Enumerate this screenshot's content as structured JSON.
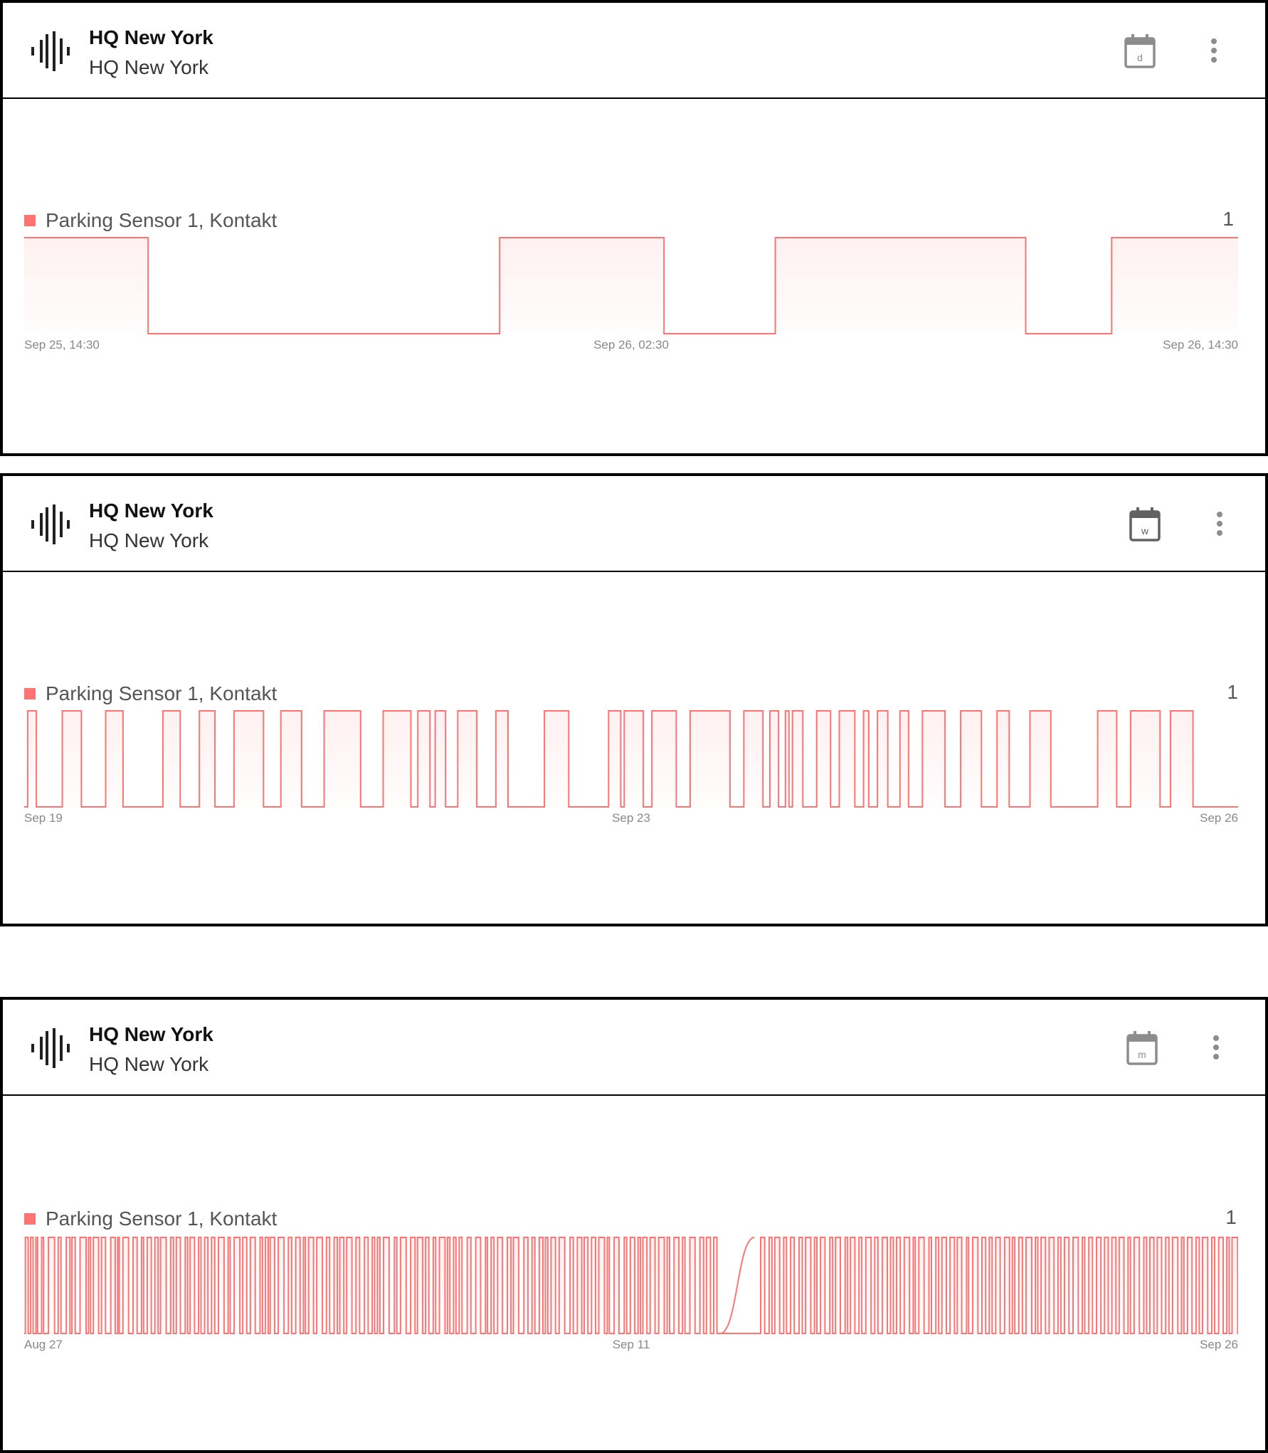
{
  "colors": {
    "series": "#ff7373",
    "series_fill": "#ffefef",
    "axis_text": "#888888",
    "icon": "#757575"
  },
  "cards": [
    {
      "title": "HQ New York",
      "subtitle": "HQ New York",
      "logo_icon": "audio-waveform-icon",
      "period_icon": "calendar-icon",
      "period_letter": "d",
      "menu_icon": "more-vert-icon",
      "legend_label": "Parking Sensor 1, Kontakt",
      "latest_value": "1"
    },
    {
      "title": "HQ New York",
      "subtitle": "HQ New York",
      "logo_icon": "audio-waveform-icon",
      "period_icon": "calendar-icon",
      "period_letter": "w",
      "menu_icon": "more-vert-icon",
      "legend_label": "Parking Sensor 1, Kontakt",
      "latest_value": "1"
    },
    {
      "title": "HQ New York",
      "subtitle": "HQ New York",
      "logo_icon": "audio-waveform-icon",
      "period_icon": "calendar-icon",
      "period_letter": "m",
      "menu_icon": "more-vert-icon",
      "legend_label": "Parking Sensor 1, Kontakt",
      "latest_value": "1"
    }
  ],
  "chart_data": [
    {
      "type": "line",
      "step": true,
      "series": [
        {
          "name": "Parking Sensor 1, Kontakt"
        }
      ],
      "x_ticks": [
        "Sep 25, 14:30",
        "Sep 26, 02:30",
        "Sep 26, 14:30"
      ],
      "x_range": [
        "Sep 25, 14:30",
        "Sep 26, 14:30"
      ],
      "y_range": [
        0,
        1
      ],
      "transitions_hours": [
        0,
        2.45,
        2.45,
        9.4,
        9.4,
        12.65,
        12.65,
        14.85,
        14.85,
        19.8,
        19.8,
        21.5,
        21.5,
        24
      ],
      "values": [
        1,
        1,
        0,
        0,
        1,
        1,
        0,
        0,
        1,
        1,
        0,
        0,
        1,
        1
      ]
    },
    {
      "type": "line",
      "step": true,
      "series": [
        {
          "name": "Parking Sensor 1, Kontakt"
        }
      ],
      "x_ticks": [
        "Sep 19",
        "Sep 23",
        "Sep 26"
      ],
      "x_range": [
        "Sep 19",
        "Sep 26"
      ],
      "y_range": [
        0,
        1
      ],
      "on_intervals_days": [
        [
          0.02,
          0.07
        ],
        [
          0.22,
          0.33
        ],
        [
          0.47,
          0.57
        ],
        [
          0.8,
          0.9
        ],
        [
          1.01,
          1.1
        ],
        [
          1.21,
          1.38
        ],
        [
          1.48,
          1.6
        ],
        [
          1.73,
          1.94
        ],
        [
          2.07,
          2.23
        ],
        [
          2.27,
          2.34
        ],
        [
          2.37,
          2.43
        ],
        [
          2.5,
          2.61
        ],
        [
          2.72,
          2.79
        ],
        [
          3.0,
          3.14
        ],
        [
          3.37,
          3.44
        ],
        [
          3.46,
          3.57
        ],
        [
          3.62,
          3.76
        ],
        [
          3.84,
          4.07
        ],
        [
          4.15,
          4.26
        ],
        [
          4.3,
          4.35
        ],
        [
          4.39,
          4.41
        ],
        [
          4.43,
          4.49
        ],
        [
          4.57,
          4.65
        ],
        [
          4.7,
          4.79
        ],
        [
          4.84,
          4.87
        ],
        [
          4.92,
          4.98
        ],
        [
          5.05,
          5.1
        ],
        [
          5.18,
          5.31
        ],
        [
          5.4,
          5.52
        ],
        [
          5.61,
          5.68
        ],
        [
          5.8,
          5.92
        ],
        [
          6.19,
          6.3
        ],
        [
          6.38,
          6.55
        ],
        [
          6.61,
          6.74
        ]
      ]
    },
    {
      "type": "line",
      "step": true,
      "series": [
        {
          "name": "Parking Sensor 1, Kontakt"
        }
      ],
      "x_ticks": [
        "Aug 27",
        "Sep 11",
        "Sep 26"
      ],
      "x_range": [
        "Aug 27",
        "Sep 26"
      ],
      "y_range": [
        0,
        1
      ],
      "gap_days": [
        17.2,
        18.05
      ],
      "on_intervals_days": [
        [
          0.03,
          0.1
        ],
        [
          0.16,
          0.22
        ],
        [
          0.29,
          0.33
        ],
        [
          0.43,
          0.48
        ],
        [
          0.6,
          0.75
        ],
        [
          0.84,
          0.91
        ],
        [
          1.04,
          1.13
        ],
        [
          1.18,
          1.26
        ],
        [
          1.38,
          1.53
        ],
        [
          1.59,
          1.64
        ],
        [
          1.71,
          1.84
        ],
        [
          1.91,
          2.01
        ],
        [
          2.14,
          2.25
        ],
        [
          2.31,
          2.35
        ],
        [
          2.44,
          2.58
        ],
        [
          2.69,
          2.79
        ],
        [
          2.9,
          2.95
        ],
        [
          3.04,
          3.14
        ],
        [
          3.23,
          3.31
        ],
        [
          3.37,
          3.51
        ],
        [
          3.62,
          3.69
        ],
        [
          3.76,
          3.86
        ],
        [
          3.98,
          4.04
        ],
        [
          4.1,
          4.21
        ],
        [
          4.31,
          4.37
        ],
        [
          4.46,
          4.54
        ],
        [
          4.63,
          4.71
        ],
        [
          4.8,
          4.94
        ],
        [
          5.04,
          5.09
        ],
        [
          5.19,
          5.33
        ],
        [
          5.4,
          5.5
        ],
        [
          5.59,
          5.71
        ],
        [
          5.83,
          5.89
        ],
        [
          5.96,
          6.03
        ],
        [
          6.08,
          6.19
        ],
        [
          6.28,
          6.42
        ],
        [
          6.53,
          6.61
        ],
        [
          6.71,
          6.82
        ],
        [
          6.9,
          6.95
        ],
        [
          7.03,
          7.15
        ],
        [
          7.23,
          7.37
        ],
        [
          7.47,
          7.55
        ],
        [
          7.66,
          7.74
        ],
        [
          7.8,
          7.9
        ],
        [
          7.97,
          8.1
        ],
        [
          8.2,
          8.29
        ],
        [
          8.41,
          8.5
        ],
        [
          8.6,
          8.66
        ],
        [
          8.73,
          8.79
        ],
        [
          8.88,
          9.02
        ],
        [
          9.15,
          9.21
        ],
        [
          9.3,
          9.44
        ],
        [
          9.55,
          9.66
        ],
        [
          9.72,
          9.85
        ],
        [
          9.92,
          10.0
        ],
        [
          10.11,
          10.17
        ],
        [
          10.26,
          10.4
        ],
        [
          10.46,
          10.52
        ],
        [
          10.61,
          10.67
        ],
        [
          10.75,
          10.82
        ],
        [
          10.95,
          11.04
        ],
        [
          11.16,
          11.28
        ],
        [
          11.4,
          11.45
        ],
        [
          11.54,
          11.61
        ],
        [
          11.7,
          11.82
        ],
        [
          11.94,
          12.03
        ],
        [
          12.09,
          12.22
        ],
        [
          12.35,
          12.45
        ],
        [
          12.55,
          12.62
        ],
        [
          12.73,
          12.82
        ],
        [
          12.88,
          12.94
        ],
        [
          13.02,
          13.13
        ],
        [
          13.22,
          13.36
        ],
        [
          13.49,
          13.57
        ],
        [
          13.67,
          13.78
        ],
        [
          13.84,
          13.93
        ],
        [
          14.02,
          14.12
        ],
        [
          14.2,
          14.34
        ],
        [
          14.41,
          14.46
        ],
        [
          14.58,
          14.7
        ],
        [
          14.83,
          14.89
        ],
        [
          14.98,
          15.09
        ],
        [
          15.17,
          15.23
        ],
        [
          15.29,
          15.39
        ],
        [
          15.47,
          15.59
        ],
        [
          15.68,
          15.82
        ],
        [
          15.89,
          15.95
        ],
        [
          16.06,
          16.18
        ],
        [
          16.27,
          16.33
        ],
        [
          16.45,
          16.58
        ],
        [
          16.7,
          16.79
        ],
        [
          16.86,
          16.96
        ],
        [
          17.04,
          17.12
        ],
        [
          18.2,
          18.3
        ],
        [
          18.41,
          18.48
        ],
        [
          18.55,
          18.67
        ],
        [
          18.77,
          18.84
        ],
        [
          18.94,
          19.03
        ],
        [
          19.15,
          19.23
        ],
        [
          19.31,
          19.44
        ],
        [
          19.53,
          19.59
        ],
        [
          19.68,
          19.79
        ],
        [
          19.91,
          19.98
        ],
        [
          20.05,
          20.17
        ],
        [
          20.29,
          20.35
        ],
        [
          20.42,
          20.53
        ],
        [
          20.63,
          20.7
        ],
        [
          20.8,
          20.93
        ],
        [
          21.02,
          21.1
        ],
        [
          21.21,
          21.33
        ],
        [
          21.41,
          21.48
        ],
        [
          21.56,
          21.65
        ],
        [
          21.75,
          21.88
        ],
        [
          21.97,
          22.02
        ],
        [
          22.11,
          22.24
        ],
        [
          22.36,
          22.42
        ],
        [
          22.53,
          22.6
        ],
        [
          22.68,
          22.79
        ],
        [
          22.88,
          22.99
        ],
        [
          23.06,
          23.17
        ],
        [
          23.29,
          23.34
        ],
        [
          23.44,
          23.57
        ],
        [
          23.67,
          23.76
        ],
        [
          23.85,
          23.92
        ],
        [
          24.01,
          24.12
        ],
        [
          24.23,
          24.35
        ],
        [
          24.42,
          24.48
        ],
        [
          24.58,
          24.67
        ],
        [
          24.76,
          24.9
        ],
        [
          24.99,
          25.05
        ],
        [
          25.13,
          25.24
        ],
        [
          25.33,
          25.45
        ],
        [
          25.55,
          25.62
        ],
        [
          25.71,
          25.82
        ],
        [
          25.92,
          26.05
        ],
        [
          26.15,
          26.21
        ],
        [
          26.31,
          26.4
        ],
        [
          26.5,
          26.61
        ],
        [
          26.7,
          26.79
        ],
        [
          26.88,
          26.98
        ],
        [
          27.06,
          27.18
        ],
        [
          27.28,
          27.34
        ],
        [
          27.43,
          27.56
        ],
        [
          27.67,
          27.74
        ],
        [
          27.82,
          27.92
        ],
        [
          28.0,
          28.11
        ],
        [
          28.21,
          28.29
        ],
        [
          28.38,
          28.51
        ],
        [
          28.6,
          28.66
        ],
        [
          28.75,
          28.86
        ],
        [
          28.96,
          29.04
        ],
        [
          29.12,
          29.25
        ],
        [
          29.35,
          29.42
        ],
        [
          29.52,
          29.63
        ],
        [
          29.72,
          29.78
        ],
        [
          29.85,
          29.99
        ]
      ]
    }
  ]
}
